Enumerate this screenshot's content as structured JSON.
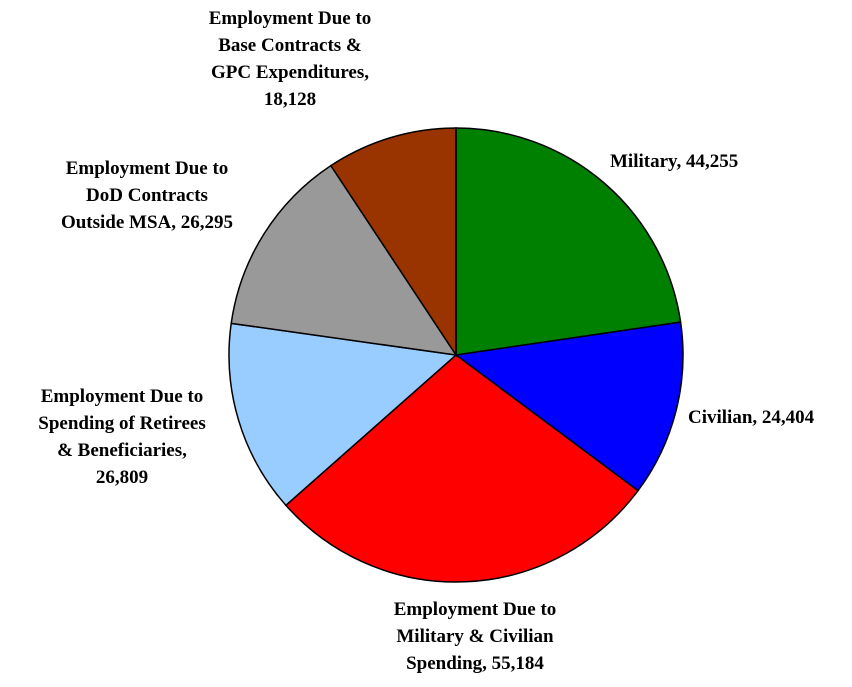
{
  "chart_data": {
    "type": "pie",
    "labels": [
      [
        "Military, 44,255"
      ],
      [
        "Civilian, 24,404"
      ],
      [
        "Employment Due to",
        "Military & Civilian",
        "Spending, 55,184"
      ],
      [
        "Employment Due to",
        "Spending of Retirees",
        "& Beneficiaries,",
        "26,809"
      ],
      [
        "Employment Due to",
        "DoD Contracts",
        "Outside MSA, 26,295"
      ],
      [
        "Employment Due to",
        "Base Contracts &",
        "GPC Expenditures,",
        "18,128"
      ]
    ],
    "values": [
      44255,
      24404,
      55184,
      26809,
      26295,
      18128
    ],
    "colors": [
      "#008000",
      "#0000ff",
      "#ff0000",
      "#99ccff",
      "#999999",
      "#993300"
    ]
  }
}
